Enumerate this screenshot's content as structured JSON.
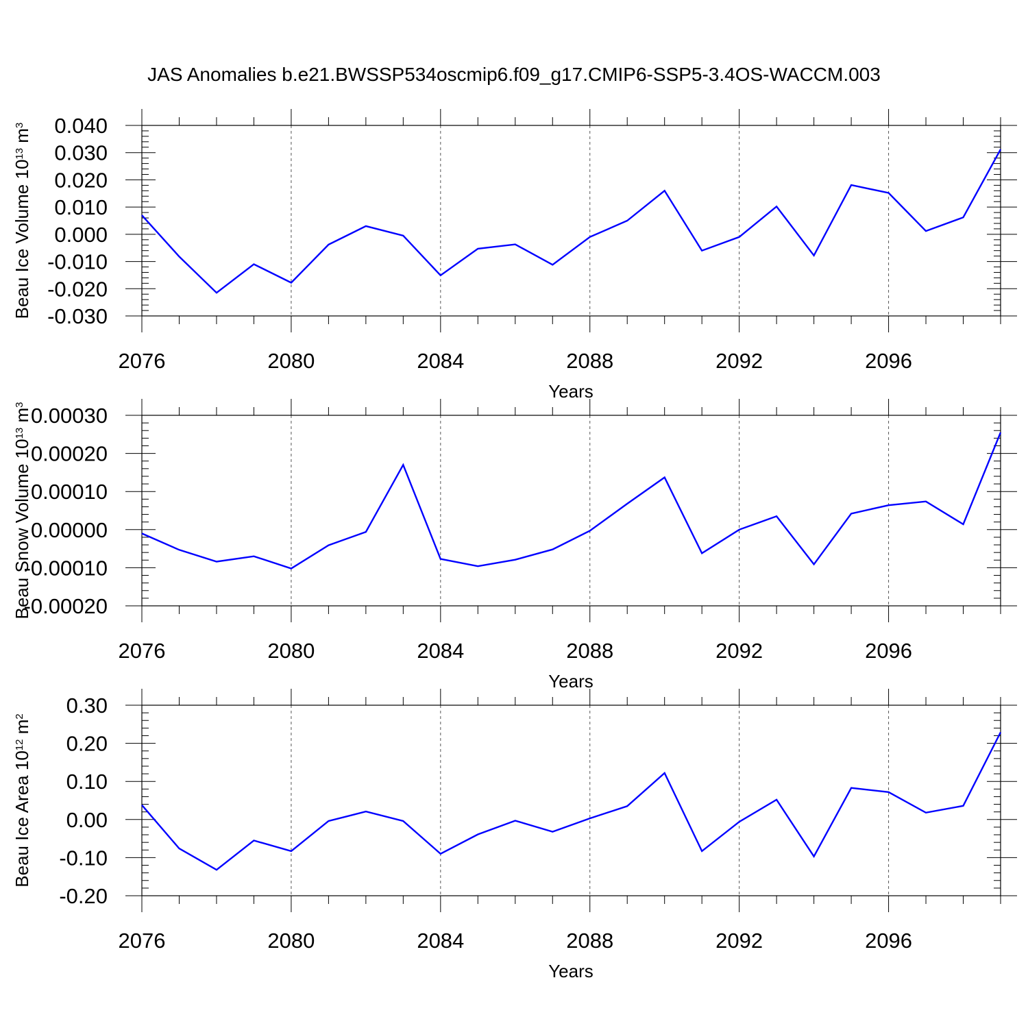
{
  "title": "JAS Anomalies b.e21.BWSSP534oscmip6.f09_g17.CMIP6-SSP5-3.4OS-WACCM.003",
  "colors": {
    "line": "#0000ff",
    "axis": "#000000",
    "grid": "#555555"
  },
  "chart_data": [
    {
      "type": "line",
      "ylabel": {
        "text": "Beau Ice Volume 10",
        "sup": "13",
        "unit": " m",
        "unit_sup": "3"
      },
      "xlabel": "Years",
      "xlim": [
        2076,
        2099
      ],
      "ylim": [
        -0.03,
        0.04
      ],
      "yticks": [
        -0.03,
        -0.02,
        -0.01,
        0.0,
        0.01,
        0.02,
        0.03,
        0.04
      ],
      "ytick_labels": [
        "-0.030",
        "-0.020",
        "-0.010",
        "0.000",
        "0.010",
        "0.020",
        "0.030",
        "0.040"
      ],
      "xticks": [
        2076,
        2080,
        2084,
        2088,
        2092,
        2096
      ],
      "xtick_labels": [
        "2076",
        "2080",
        "2084",
        "2088",
        "2092",
        "2096"
      ],
      "grid_x": [
        2080,
        2084,
        2088,
        2092,
        2096
      ],
      "series": [
        {
          "name": "Beau Ice Volume",
          "x": [
            2076,
            2077,
            2078,
            2079,
            2080,
            2081,
            2082,
            2083,
            2084,
            2085,
            2086,
            2087,
            2088,
            2089,
            2090,
            2091,
            2092,
            2093,
            2094,
            2095,
            2096,
            2097,
            2098,
            2099
          ],
          "values": [
            0.007,
            -0.0082,
            -0.0215,
            -0.011,
            -0.0178,
            -0.0038,
            0.003,
            -0.0005,
            -0.0151,
            -0.0053,
            -0.0037,
            -0.0112,
            -0.001,
            0.005,
            0.016,
            -0.006,
            -0.001,
            0.0102,
            -0.0078,
            0.0181,
            0.0152,
            0.0012,
            0.0062,
            0.0312
          ]
        }
      ]
    },
    {
      "type": "line",
      "ylabel": {
        "text": "Beau Snow Volume 10",
        "sup": "13",
        "unit": " m",
        "unit_sup": "3"
      },
      "xlabel": "Years",
      "xlim": [
        2076,
        2099
      ],
      "ylim": [
        -0.0002,
        0.0003
      ],
      "yticks": [
        -0.0002,
        -0.0001,
        0.0,
        0.0001,
        0.0002,
        0.0003
      ],
      "ytick_labels": [
        "-0.00020",
        "-0.00010",
        "0.00000",
        "0.00010",
        "0.00020",
        "0.00030"
      ],
      "xticks": [
        2076,
        2080,
        2084,
        2088,
        2092,
        2096
      ],
      "xtick_labels": [
        "2076",
        "2080",
        "2084",
        "2088",
        "2092",
        "2096"
      ],
      "grid_x": [
        2080,
        2084,
        2088,
        2092,
        2096
      ],
      "series": [
        {
          "name": "Beau Snow Volume",
          "x": [
            2076,
            2077,
            2078,
            2079,
            2080,
            2081,
            2082,
            2083,
            2084,
            2085,
            2086,
            2087,
            2088,
            2089,
            2090,
            2091,
            2092,
            2093,
            2094,
            2095,
            2096,
            2097,
            2098,
            2099
          ],
          "values": [
            -1e-05,
            -5.3e-05,
            -8.4e-05,
            -7e-05,
            -0.000102,
            -4.1e-05,
            -6e-06,
            0.00017,
            -7.7e-05,
            -9.6e-05,
            -7.9e-05,
            -5.2e-05,
            -3e-06,
            6.8e-05,
            0.000137,
            -6.2e-05,
            0.0,
            3.5e-05,
            -9.1e-05,
            4.2e-05,
            6.4e-05,
            7.4e-05,
            1.4e-05,
            0.000255
          ]
        }
      ]
    },
    {
      "type": "line",
      "ylabel": {
        "text": "Beau Ice Area 10",
        "sup": "12",
        "unit": " m",
        "unit_sup": "2"
      },
      "xlabel": "Years",
      "xlim": [
        2076,
        2099
      ],
      "ylim": [
        -0.2,
        0.3
      ],
      "yticks": [
        -0.2,
        -0.1,
        0.0,
        0.1,
        0.2,
        0.3
      ],
      "ytick_labels": [
        "-0.20",
        "-0.10",
        "0.00",
        "0.10",
        "0.20",
        "0.30"
      ],
      "xticks": [
        2076,
        2080,
        2084,
        2088,
        2092,
        2096
      ],
      "xtick_labels": [
        "2076",
        "2080",
        "2084",
        "2088",
        "2092",
        "2096"
      ],
      "grid_x": [
        2080,
        2084,
        2088,
        2092,
        2096
      ],
      "series": [
        {
          "name": "Beau Ice Area",
          "x": [
            2076,
            2077,
            2078,
            2079,
            2080,
            2081,
            2082,
            2083,
            2084,
            2085,
            2086,
            2087,
            2088,
            2089,
            2090,
            2091,
            2092,
            2093,
            2094,
            2095,
            2096,
            2097,
            2098,
            2099
          ],
          "values": [
            0.038,
            -0.076,
            -0.132,
            -0.055,
            -0.083,
            -0.004,
            0.021,
            -0.004,
            -0.09,
            -0.039,
            -0.003,
            -0.032,
            0.003,
            0.035,
            0.122,
            -0.083,
            -0.006,
            0.052,
            -0.097,
            0.083,
            0.072,
            0.018,
            0.036,
            0.229
          ]
        }
      ]
    }
  ]
}
